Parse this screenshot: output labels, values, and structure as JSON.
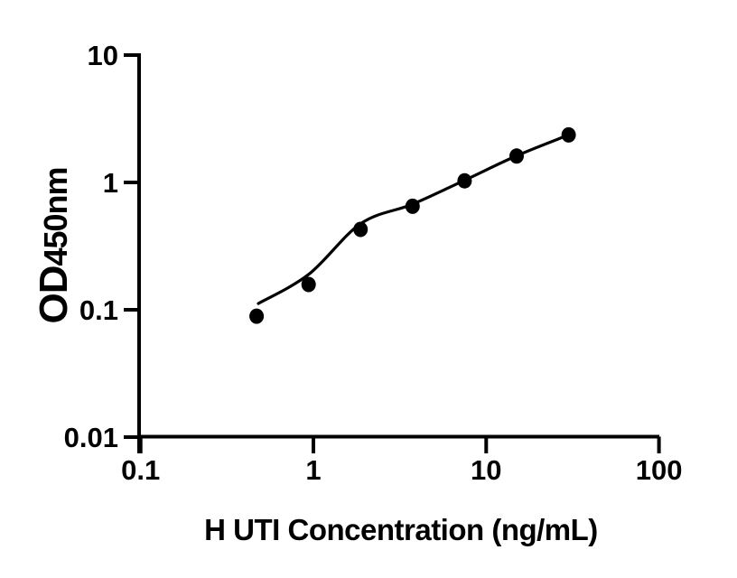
{
  "chart_data": {
    "type": "scatter",
    "title": "",
    "xlabel": "H UTI Concentration (ng/mL)",
    "ylabel": "OD450nm",
    "ylabel_parts": {
      "prefix": "OD",
      "suffix": "450nm"
    },
    "x_scale": "log",
    "y_scale": "log",
    "xlim": [
      0.1,
      100
    ],
    "ylim": [
      0.01,
      10
    ],
    "x_ticks": [
      0.1,
      1,
      10,
      100
    ],
    "x_tick_labels": [
      "0.1",
      "1",
      "10",
      "100"
    ],
    "y_ticks": [
      10,
      1,
      0.1,
      0.01
    ],
    "y_tick_labels": [
      "10",
      "1",
      "0.1",
      "0.01"
    ],
    "grid": false,
    "legend": "none",
    "colors": {
      "axis": "#000000",
      "marker": "#000000",
      "curve": "#000000",
      "background": "#ffffff"
    },
    "series": [
      {
        "name": "H UTI standard points",
        "type": "scatter",
        "marker": "filled-circle",
        "color": "#000000",
        "x": [
          0.469,
          0.938,
          1.875,
          3.75,
          7.5,
          15,
          30
        ],
        "y": [
          0.089,
          0.158,
          0.428,
          0.65,
          1.03,
          1.61,
          2.36
        ]
      },
      {
        "name": "4PL fit curve",
        "type": "line",
        "color": "#000000",
        "x": [
          0.48,
          0.94,
          1.88,
          3.75,
          7.5,
          15,
          30
        ],
        "y": [
          0.112,
          0.19,
          0.475,
          0.675,
          1.04,
          1.62,
          2.36
        ]
      }
    ]
  }
}
